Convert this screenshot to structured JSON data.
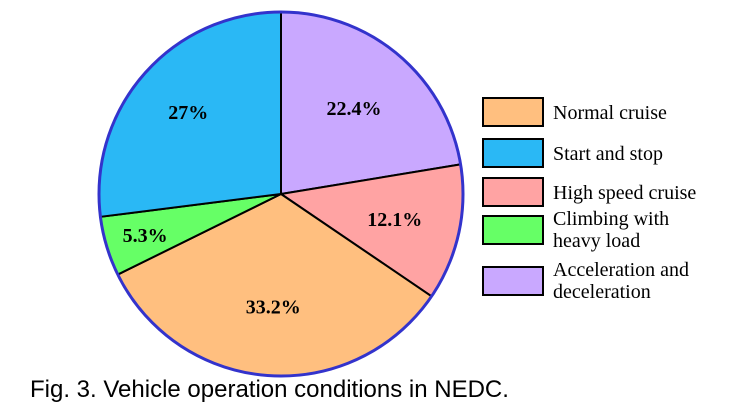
{
  "chart_data": {
    "type": "pie",
    "start_angle_deg": 0,
    "direction": "clockwise",
    "slices": [
      {
        "label": "Acceleration and deceleration",
        "legend_lines": [
          "Acceleration and",
          "deceleration"
        ],
        "value": 22.4,
        "value_label": "22.4%",
        "color": "#c9a8ff"
      },
      {
        "label": "High speed cruise",
        "legend_lines": [
          "High speed cruise"
        ],
        "value": 12.1,
        "value_label": "12.1%",
        "color": "#ffa3a3"
      },
      {
        "label": "Normal cruise",
        "legend_lines": [
          "Normal cruise"
        ],
        "value": 33.2,
        "value_label": "33.2%",
        "color": "#ffbf7f"
      },
      {
        "label": "Climbing with heavy load",
        "legend_lines": [
          "Climbing with",
          "heavy load"
        ],
        "value": 5.3,
        "value_label": "5.3%",
        "color": "#66ff66"
      },
      {
        "label": "Start and stop",
        "legend_lines": [
          "Start and stop"
        ],
        "value": 27,
        "value_label": "27%",
        "color": "#2ab8f5"
      }
    ],
    "legend": {
      "position": "right",
      "order": [
        "Normal cruise",
        "Start and stop",
        "High speed cruise",
        "Climbing with heavy load",
        "Acceleration and deceleration"
      ]
    },
    "outline_color": "#3333cc"
  },
  "caption": "Fig. 3. Vehicle operation conditions in NEDC."
}
